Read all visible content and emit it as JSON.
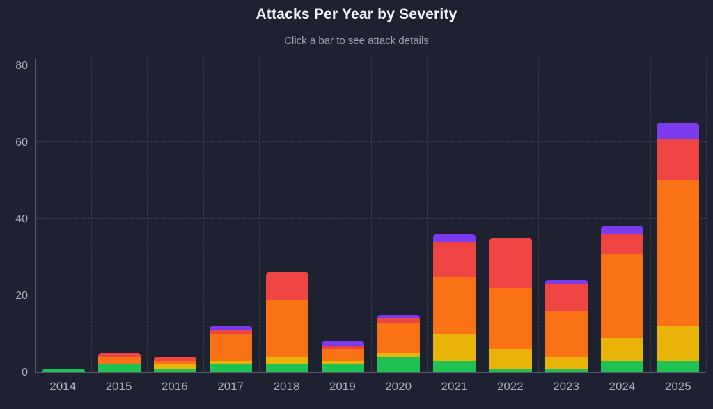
{
  "chart_data": {
    "type": "bar",
    "stacked": true,
    "title": "Attacks Per Year by Severity",
    "subtitle": "Click a bar to see attack details",
    "categories": [
      "2014",
      "2015",
      "2016",
      "2017",
      "2018",
      "2019",
      "2020",
      "2021",
      "2022",
      "2023",
      "2024",
      "2025"
    ],
    "series": [
      {
        "name": "green",
        "color": "#1fc252",
        "values": [
          1,
          2,
          1,
          2,
          2,
          2,
          4,
          3,
          1,
          1,
          3,
          3
        ]
      },
      {
        "name": "yellow",
        "color": "#eab308",
        "values": [
          0,
          0,
          1,
          1,
          2,
          1,
          1,
          7,
          5,
          3,
          6,
          9
        ]
      },
      {
        "name": "orange",
        "color": "#f97316",
        "values": [
          0,
          2,
          1,
          7,
          15,
          3,
          8,
          15,
          16,
          12,
          22,
          38
        ]
      },
      {
        "name": "red",
        "color": "#ef4444",
        "values": [
          0,
          1,
          1,
          1,
          7,
          1,
          1,
          9,
          13,
          7,
          5,
          11
        ]
      },
      {
        "name": "purple",
        "color": "#7c3aed",
        "values": [
          0,
          0,
          0,
          1,
          0,
          1,
          1,
          2,
          0,
          1,
          2,
          4
        ]
      }
    ],
    "totals": [
      1,
      5,
      4,
      12,
      26,
      8,
      15,
      36,
      35,
      24,
      38,
      65
    ],
    "y_ticks": [
      0,
      20,
      40,
      60,
      80
    ],
    "ylim": [
      0,
      80
    ],
    "grid": "dashed",
    "legend": "none"
  },
  "theme": {
    "background": "#1e2230",
    "title_color": "#f2f4f8",
    "subtitle_color": "#98a1b3",
    "tick_color": "#a7aebc",
    "grid_color": "#3a4152",
    "axis_color": "#525a6b"
  }
}
